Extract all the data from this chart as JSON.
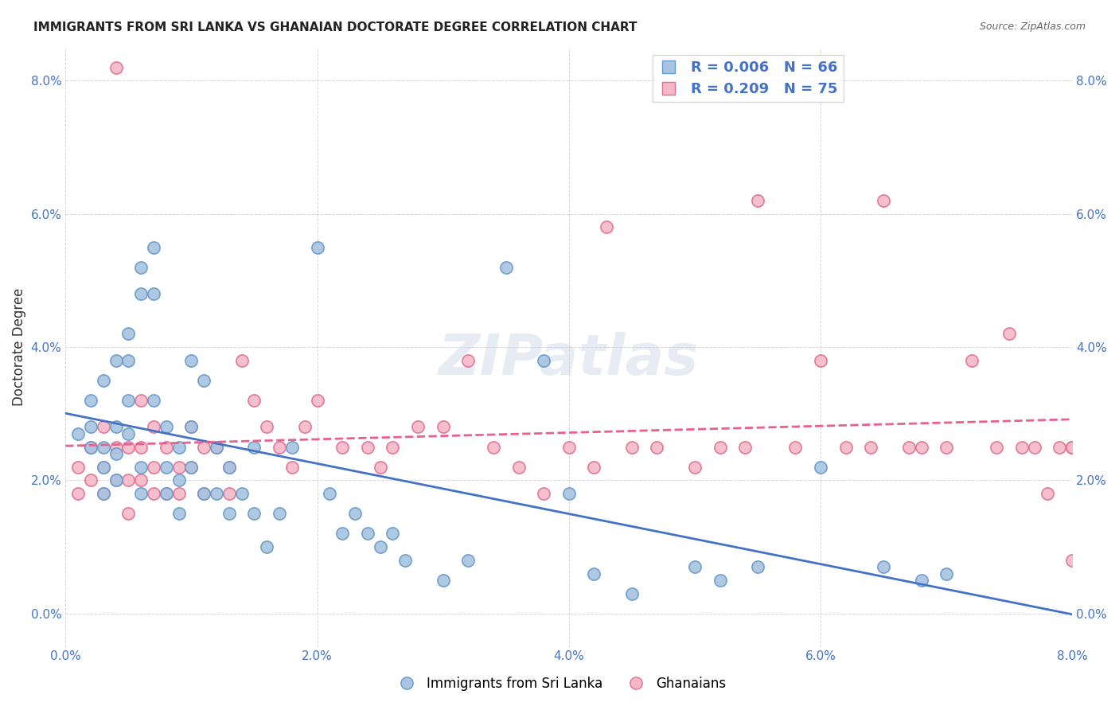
{
  "title": "IMMIGRANTS FROM SRI LANKA VS GHANAIAN DOCTORATE DEGREE CORRELATION CHART",
  "source": "Source: ZipAtlas.com",
  "ylabel": "Doctorate Degree",
  "xlabel_ticks": [
    "0.0%",
    "2.0%",
    "4.0%",
    "6.0%",
    "8.0%"
  ],
  "ylabel_ticks": [
    "0.0%",
    "2.0%",
    "4.0%",
    "6.0%",
    "8.0%"
  ],
  "xmin": 0.0,
  "xmax": 0.08,
  "ymin": -0.005,
  "ymax": 0.085,
  "sri_lanka_color": "#a8c4e0",
  "sri_lanka_edge": "#6699cc",
  "ghanaian_color": "#f4b8c8",
  "ghanaian_edge": "#e07090",
  "sri_lanka_R": 0.006,
  "sri_lanka_N": 66,
  "ghanaian_R": 0.209,
  "ghanaian_N": 75,
  "trend_blue": "#4472c4",
  "trend_pink": "#e86090",
  "watermark": "ZIPatlas",
  "legend_label_1": "Immigrants from Sri Lanka",
  "legend_label_2": "Ghanaians",
  "sri_lanka_x": [
    0.001,
    0.002,
    0.002,
    0.002,
    0.003,
    0.003,
    0.003,
    0.003,
    0.004,
    0.004,
    0.004,
    0.004,
    0.005,
    0.005,
    0.005,
    0.005,
    0.006,
    0.006,
    0.006,
    0.006,
    0.007,
    0.007,
    0.007,
    0.008,
    0.008,
    0.008,
    0.009,
    0.009,
    0.009,
    0.01,
    0.01,
    0.01,
    0.011,
    0.011,
    0.012,
    0.012,
    0.013,
    0.013,
    0.014,
    0.015,
    0.015,
    0.016,
    0.017,
    0.018,
    0.02,
    0.021,
    0.022,
    0.023,
    0.024,
    0.025,
    0.026,
    0.027,
    0.03,
    0.032,
    0.035,
    0.038,
    0.04,
    0.042,
    0.045,
    0.05,
    0.052,
    0.055,
    0.06,
    0.065,
    0.068,
    0.07
  ],
  "sri_lanka_y": [
    0.027,
    0.032,
    0.028,
    0.025,
    0.035,
    0.025,
    0.022,
    0.018,
    0.038,
    0.028,
    0.024,
    0.02,
    0.042,
    0.038,
    0.032,
    0.027,
    0.052,
    0.048,
    0.022,
    0.018,
    0.055,
    0.048,
    0.032,
    0.028,
    0.022,
    0.018,
    0.025,
    0.02,
    0.015,
    0.038,
    0.028,
    0.022,
    0.035,
    0.018,
    0.025,
    0.018,
    0.022,
    0.015,
    0.018,
    0.025,
    0.015,
    0.01,
    0.015,
    0.025,
    0.055,
    0.018,
    0.012,
    0.015,
    0.012,
    0.01,
    0.012,
    0.008,
    0.005,
    0.008,
    0.052,
    0.038,
    0.018,
    0.006,
    0.003,
    0.007,
    0.005,
    0.007,
    0.022,
    0.007,
    0.005,
    0.006
  ],
  "ghanaian_x": [
    0.001,
    0.001,
    0.002,
    0.002,
    0.003,
    0.003,
    0.003,
    0.004,
    0.004,
    0.004,
    0.005,
    0.005,
    0.005,
    0.006,
    0.006,
    0.006,
    0.007,
    0.007,
    0.007,
    0.008,
    0.008,
    0.009,
    0.009,
    0.01,
    0.01,
    0.011,
    0.011,
    0.012,
    0.013,
    0.013,
    0.014,
    0.015,
    0.016,
    0.017,
    0.018,
    0.019,
    0.02,
    0.022,
    0.024,
    0.025,
    0.026,
    0.028,
    0.03,
    0.032,
    0.034,
    0.036,
    0.038,
    0.04,
    0.042,
    0.043,
    0.045,
    0.047,
    0.05,
    0.052,
    0.054,
    0.055,
    0.058,
    0.06,
    0.062,
    0.064,
    0.065,
    0.067,
    0.068,
    0.07,
    0.072,
    0.074,
    0.075,
    0.076,
    0.077,
    0.078,
    0.079,
    0.08,
    0.08,
    0.08,
    0.08
  ],
  "ghanaian_y": [
    0.022,
    0.018,
    0.025,
    0.02,
    0.028,
    0.022,
    0.018,
    0.082,
    0.025,
    0.02,
    0.025,
    0.02,
    0.015,
    0.032,
    0.025,
    0.02,
    0.028,
    0.022,
    0.018,
    0.025,
    0.018,
    0.022,
    0.018,
    0.028,
    0.022,
    0.025,
    0.018,
    0.025,
    0.022,
    0.018,
    0.038,
    0.032,
    0.028,
    0.025,
    0.022,
    0.028,
    0.032,
    0.025,
    0.025,
    0.022,
    0.025,
    0.028,
    0.028,
    0.038,
    0.025,
    0.022,
    0.018,
    0.025,
    0.022,
    0.058,
    0.025,
    0.025,
    0.022,
    0.025,
    0.025,
    0.062,
    0.025,
    0.038,
    0.025,
    0.025,
    0.062,
    0.025,
    0.025,
    0.025,
    0.038,
    0.025,
    0.042,
    0.025,
    0.025,
    0.018,
    0.025,
    0.008,
    0.025,
    0.025,
    0.025
  ]
}
